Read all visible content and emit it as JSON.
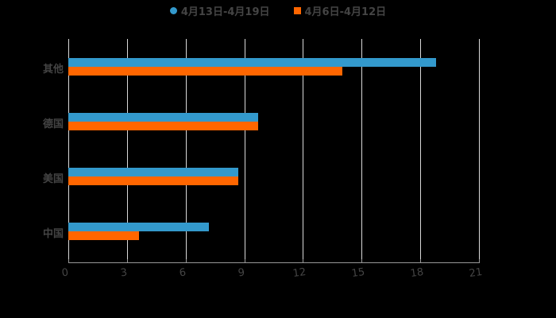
{
  "chart_data": {
    "type": "bar",
    "orientation": "horizontal",
    "title": "",
    "xlabel": "",
    "ylabel": "",
    "categories": [
      "其他",
      "德国",
      "美国",
      "中国"
    ],
    "series": [
      {
        "name": "4月13日-4月19日",
        "color": "#3399cc",
        "values": [
          18.8,
          9.7,
          8.7,
          7.2
        ]
      },
      {
        "name": "4月6日-4月12日",
        "color": "#ff6600",
        "values": [
          14.0,
          9.7,
          8.7,
          3.6
        ]
      }
    ],
    "xlim": [
      0,
      21
    ],
    "xticks": [
      "0",
      "3",
      "6",
      "9",
      "12",
      "15",
      "18",
      "21"
    ],
    "grid": "vertical",
    "legend_position": "top"
  },
  "legend": [
    {
      "label": "4月13日-4月19日",
      "color": "#3399cc",
      "shape": "circle"
    },
    {
      "label": "4月6日-4月12日",
      "color": "#ff6600",
      "shape": "square"
    }
  ]
}
